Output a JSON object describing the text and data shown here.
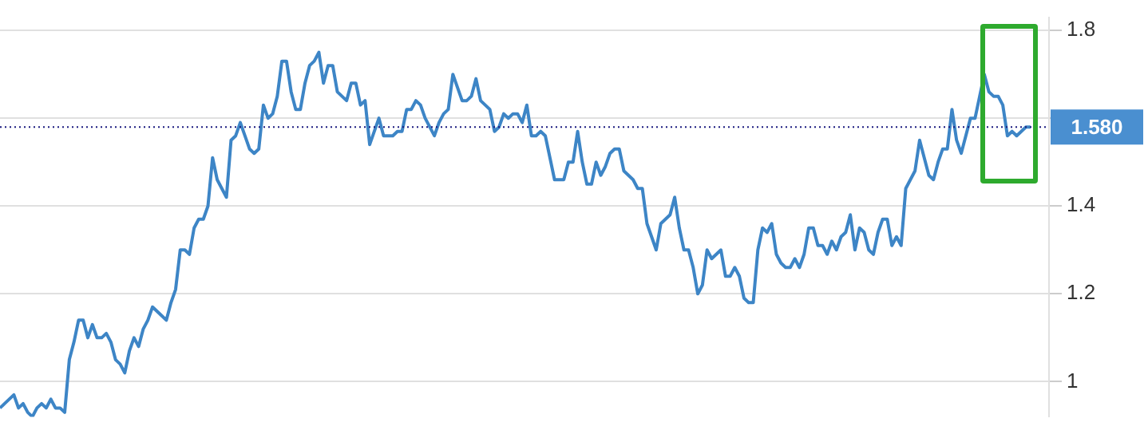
{
  "chart_data": {
    "type": "line",
    "categories": [
      null,
      null,
      null,
      null,
      null,
      null,
      null,
      null,
      null,
      null,
      null,
      null,
      null,
      null,
      null,
      null,
      null,
      null,
      null,
      null,
      null,
      null,
      null,
      null,
      null,
      null,
      null,
      null,
      null,
      null,
      null,
      null,
      null,
      null,
      null,
      null,
      null,
      null,
      null,
      null,
      null,
      null,
      null,
      null,
      null,
      null,
      null,
      null,
      null,
      null,
      null,
      null,
      null,
      null,
      null,
      null,
      null,
      null,
      null,
      null,
      null,
      null,
      null,
      null,
      null,
      null,
      null,
      null,
      null,
      null,
      null,
      null,
      null,
      null,
      null,
      null,
      null,
      null,
      null,
      null,
      null,
      null,
      null,
      null,
      null,
      null,
      null,
      null,
      null,
      null,
      null,
      null,
      null,
      null,
      null,
      null,
      null,
      null,
      null,
      null,
      null,
      null,
      null,
      null,
      null,
      null,
      null,
      null,
      null,
      null,
      null,
      null,
      null,
      null,
      null,
      null,
      null,
      null,
      null,
      null,
      null,
      null,
      null,
      null,
      null,
      null,
      null,
      null,
      null,
      null,
      null,
      null,
      null,
      null,
      null,
      null,
      null,
      null,
      null,
      null,
      null,
      null,
      null,
      null,
      null,
      null,
      null,
      null,
      null,
      null,
      null,
      null,
      null,
      null,
      null,
      null,
      null,
      null,
      null,
      null,
      null,
      null,
      null,
      null,
      null,
      null,
      null,
      null,
      null,
      null,
      null,
      null,
      null,
      null,
      null,
      null,
      null,
      null,
      null,
      null,
      null,
      null,
      null,
      null,
      null,
      null,
      null,
      null,
      null,
      null,
      null,
      null,
      null,
      null,
      null,
      null,
      null,
      null,
      null,
      null,
      null,
      null,
      null,
      null,
      null,
      null,
      null,
      null,
      null,
      null,
      null,
      null,
      null,
      null,
      null,
      null,
      null,
      null,
      null,
      null,
      null,
      null,
      null,
      null,
      null,
      null,
      null,
      null
    ],
    "series": [
      {
        "color": "#3d85c6",
        "values": [
          0.94,
          0.95,
          0.96,
          0.97,
          0.94,
          0.95,
          0.93,
          0.92,
          0.94,
          0.95,
          0.94,
          0.96,
          0.94,
          0.94,
          0.93,
          1.05,
          1.09,
          1.14,
          1.14,
          1.1,
          1.13,
          1.1,
          1.1,
          1.11,
          1.09,
          1.05,
          1.04,
          1.02,
          1.07,
          1.1,
          1.08,
          1.12,
          1.14,
          1.17,
          1.16,
          1.15,
          1.14,
          1.18,
          1.21,
          1.3,
          1.3,
          1.29,
          1.35,
          1.37,
          1.37,
          1.4,
          1.51,
          1.46,
          1.44,
          1.42,
          1.55,
          1.56,
          1.59,
          1.56,
          1.53,
          1.52,
          1.53,
          1.63,
          1.6,
          1.61,
          1.65,
          1.73,
          1.73,
          1.66,
          1.62,
          1.62,
          1.68,
          1.72,
          1.73,
          1.75,
          1.68,
          1.72,
          1.72,
          1.66,
          1.65,
          1.64,
          1.68,
          1.68,
          1.63,
          1.64,
          1.54,
          1.57,
          1.6,
          1.56,
          1.56,
          1.56,
          1.57,
          1.57,
          1.62,
          1.62,
          1.64,
          1.63,
          1.6,
          1.58,
          1.56,
          1.59,
          1.61,
          1.62,
          1.7,
          1.67,
          1.64,
          1.64,
          1.65,
          1.69,
          1.64,
          1.63,
          1.62,
          1.57,
          1.58,
          1.61,
          1.6,
          1.61,
          1.61,
          1.59,
          1.63,
          1.56,
          1.56,
          1.57,
          1.56,
          1.51,
          1.46,
          1.46,
          1.46,
          1.5,
          1.5,
          1.57,
          1.5,
          1.45,
          1.45,
          1.5,
          1.47,
          1.49,
          1.52,
          1.53,
          1.53,
          1.48,
          1.47,
          1.46,
          1.44,
          1.44,
          1.36,
          1.33,
          1.3,
          1.36,
          1.37,
          1.38,
          1.42,
          1.35,
          1.3,
          1.3,
          1.26,
          1.2,
          1.22,
          1.3,
          1.28,
          1.29,
          1.3,
          1.24,
          1.24,
          1.26,
          1.24,
          1.19,
          1.18,
          1.18,
          1.3,
          1.35,
          1.34,
          1.36,
          1.29,
          1.27,
          1.26,
          1.26,
          1.28,
          1.26,
          1.29,
          1.35,
          1.35,
          1.31,
          1.31,
          1.29,
          1.32,
          1.3,
          1.33,
          1.34,
          1.38,
          1.3,
          1.35,
          1.34,
          1.3,
          1.29,
          1.34,
          1.37,
          1.37,
          1.31,
          1.33,
          1.31,
          1.44,
          1.46,
          1.48,
          1.55,
          1.51,
          1.47,
          1.46,
          1.5,
          1.53,
          1.53,
          1.62,
          1.55,
          1.52,
          1.56,
          1.6,
          1.6,
          1.65,
          1.7,
          1.66,
          1.65,
          1.65,
          1.63,
          1.56,
          1.57,
          1.56,
          1.57,
          1.58,
          1.58,
          null,
          null,
          null,
          null
        ]
      }
    ],
    "ylim": [
      0.92,
      1.83
    ],
    "yticks": [
      1,
      1.2,
      1.4,
      {
        "value": 1.6,
        "label": null
      },
      1.8
    ],
    "grid": "y",
    "tick_labels": "y",
    "legend": false,
    "marker": "none",
    "line_style": "solid",
    "ref_lines": [
      {
        "axis": "y",
        "value": 1.58,
        "label": "1.580",
        "color": "#1b1b80",
        "line_style": "dotted"
      }
    ]
  }
}
